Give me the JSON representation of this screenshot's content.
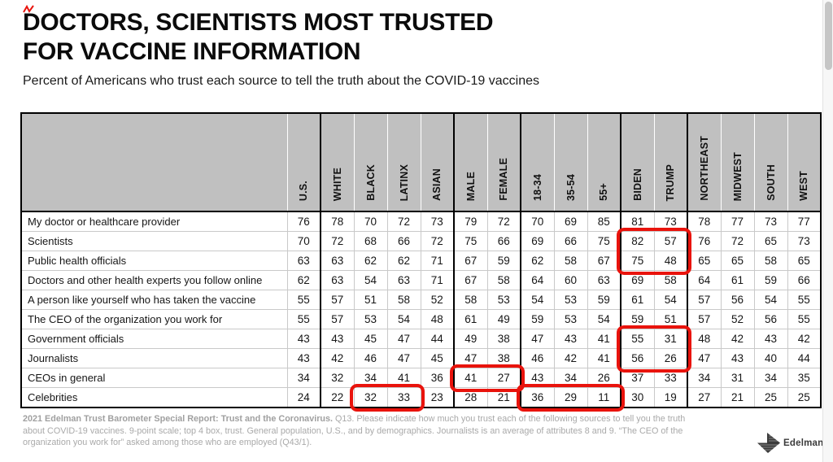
{
  "header": {
    "title_line1": "DOCTORS, SCIENTISTS MOST TRUSTED",
    "title_line2": "FOR VACCINE INFORMATION",
    "subtitle": "Percent of Americans who trust each source to tell the truth about the COVID-19 vaccines"
  },
  "footnote": {
    "bold": "2021 Edelman Trust Barometer Special Report: Trust and the Coronavirus.",
    "rest": " Q13. Please indicate how much you trust each of the following sources to tell you the truth about COVID-19 vaccines. 9-point scale; top 4 box, trust. General population, U.S., and by demographics. Journalists is an average of attributes 8 and 9. “The CEO of the organization you work for” asked among those who are employed (Q43/1)."
  },
  "logo": {
    "text": "Edelman"
  },
  "colors": {
    "header_bg": "#c0c0c0",
    "highlight_red": "#e9130c",
    "footnote_gray": "#a9a9a9",
    "grid_line": "#c9c9c9"
  },
  "chart_data": {
    "type": "table",
    "title": "DOCTORS, SCIENTISTS MOST TRUSTED FOR VACCINE INFORMATION",
    "subtitle": "Percent of Americans who trust each source to tell the truth about the COVID-19 vaccines",
    "columns": [
      "U.S.",
      "WHITE",
      "BLACK",
      "LATINX",
      "ASIAN",
      "MALE",
      "FEMALE",
      "18-34",
      "35-54",
      "55+",
      "BIDEN",
      "TRUMP",
      "NORTHEAST",
      "MIDWEST",
      "SOUTH",
      "WEST"
    ],
    "column_groups": [
      [
        "U.S."
      ],
      [
        "WHITE",
        "BLACK",
        "LATINX",
        "ASIAN"
      ],
      [
        "MALE",
        "FEMALE"
      ],
      [
        "18-34",
        "35-54",
        "55+"
      ],
      [
        "BIDEN",
        "TRUMP"
      ],
      [
        "NORTHEAST",
        "MIDWEST",
        "SOUTH",
        "WEST"
      ]
    ],
    "rows": [
      {
        "label": "My doctor or healthcare provider",
        "values": [
          76,
          78,
          70,
          72,
          73,
          79,
          72,
          70,
          69,
          85,
          81,
          73,
          78,
          77,
          73,
          77
        ]
      },
      {
        "label": "Scientists",
        "values": [
          70,
          72,
          68,
          66,
          72,
          75,
          66,
          69,
          66,
          75,
          82,
          57,
          76,
          72,
          65,
          73
        ]
      },
      {
        "label": "Public health officials",
        "values": [
          63,
          63,
          62,
          62,
          71,
          67,
          59,
          62,
          58,
          67,
          75,
          48,
          65,
          65,
          58,
          65
        ]
      },
      {
        "label": "Doctors and other health experts you follow online",
        "values": [
          62,
          63,
          54,
          63,
          71,
          67,
          58,
          64,
          60,
          63,
          69,
          58,
          64,
          61,
          59,
          66
        ]
      },
      {
        "label": "A person like yourself who has taken the vaccine",
        "values": [
          55,
          57,
          51,
          58,
          52,
          58,
          53,
          54,
          53,
          59,
          61,
          54,
          57,
          56,
          54,
          55
        ]
      },
      {
        "label": "The CEO of the organization you work for",
        "values": [
          55,
          57,
          53,
          54,
          48,
          61,
          49,
          59,
          53,
          54,
          59,
          51,
          57,
          52,
          56,
          55
        ]
      },
      {
        "label": "Government officials",
        "values": [
          43,
          43,
          45,
          47,
          44,
          49,
          38,
          47,
          43,
          41,
          55,
          31,
          48,
          42,
          43,
          42
        ]
      },
      {
        "label": "Journalists",
        "values": [
          43,
          42,
          46,
          47,
          45,
          47,
          38,
          46,
          42,
          41,
          56,
          26,
          47,
          43,
          40,
          44
        ]
      },
      {
        "label": "CEOs in general",
        "values": [
          34,
          32,
          34,
          41,
          36,
          41,
          27,
          43,
          34,
          26,
          37,
          33,
          34,
          31,
          34,
          35
        ]
      },
      {
        "label": "Celebrities",
        "values": [
          24,
          22,
          32,
          33,
          23,
          28,
          21,
          36,
          29,
          11,
          30,
          19,
          27,
          21,
          25,
          25
        ]
      }
    ],
    "highlights": [
      {
        "row_start": 1,
        "row_end": 2,
        "col_start": 10,
        "col_end": 11
      },
      {
        "row_start": 6,
        "row_end": 7,
        "col_start": 10,
        "col_end": 11
      },
      {
        "row_start": 8,
        "row_end": 8,
        "col_start": 5,
        "col_end": 6
      },
      {
        "row_start": 9,
        "row_end": 9,
        "col_start": 2,
        "col_end": 3
      },
      {
        "row_start": 9,
        "row_end": 9,
        "col_start": 7,
        "col_end": 9
      }
    ]
  }
}
